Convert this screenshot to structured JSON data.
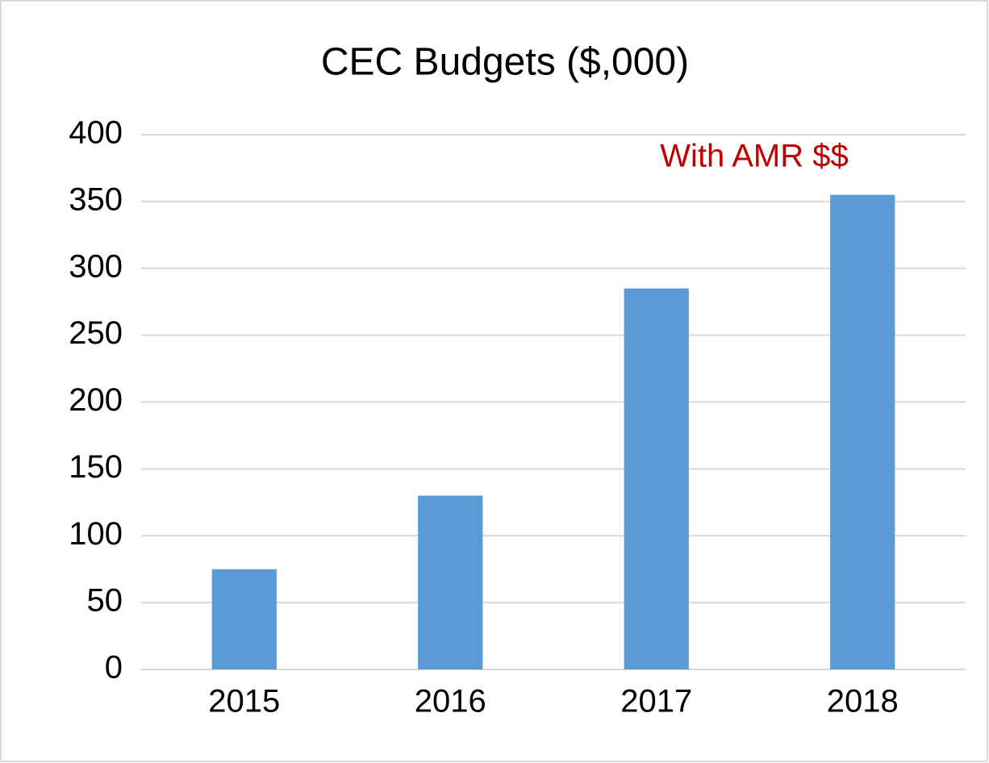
{
  "chart_data": {
    "type": "bar",
    "title": "CEC Budgets ($,000)",
    "categories": [
      "2015",
      "2016",
      "2017",
      "2018"
    ],
    "values": [
      75,
      130,
      285,
      355
    ],
    "color": "#5b9bd5",
    "ylim": [
      0,
      400
    ],
    "yticks": [
      0,
      50,
      100,
      150,
      200,
      250,
      300,
      350,
      400
    ],
    "grid": true,
    "annotations": [
      {
        "text": "With AMR $$",
        "color": "#c00000"
      }
    ]
  }
}
